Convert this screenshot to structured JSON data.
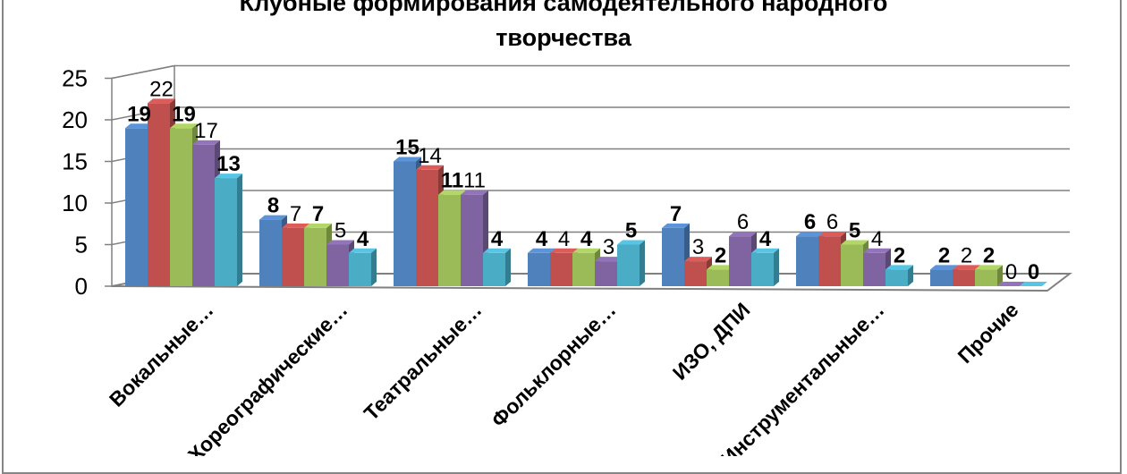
{
  "chart_data": {
    "type": "bar",
    "title_lines": [
      "Клубные формирования самодеятельного народного",
      "творчества"
    ],
    "categories": [
      "Вокальные…",
      "Хореографические…",
      "Театральные…",
      "Фольклорные…",
      "ИЗО, ДПИ",
      "Инструментальные…",
      "Прочие"
    ],
    "series": [
      {
        "values": [
          19,
          8,
          15,
          4,
          7,
          6,
          2
        ],
        "color": "#4F81BD",
        "label_bold": true
      },
      {
        "values": [
          22,
          7,
          14,
          4,
          3,
          6,
          2
        ],
        "color": "#C0504D",
        "label_bold": false
      },
      {
        "values": [
          19,
          7,
          11,
          4,
          2,
          5,
          2
        ],
        "color": "#9BBB59",
        "label_bold": true
      },
      {
        "values": [
          17,
          5,
          11,
          3,
          6,
          4,
          0
        ],
        "color": "#8064A2",
        "label_bold": false
      },
      {
        "values": [
          13,
          4,
          4,
          5,
          4,
          2,
          0
        ],
        "color": "#4BACC6",
        "label_bold": true
      }
    ],
    "y_ticks": [
      0,
      5,
      10,
      15,
      20,
      25
    ],
    "ylim": [
      0,
      25
    ],
    "grid": true,
    "legend": "none",
    "view": "3d"
  }
}
